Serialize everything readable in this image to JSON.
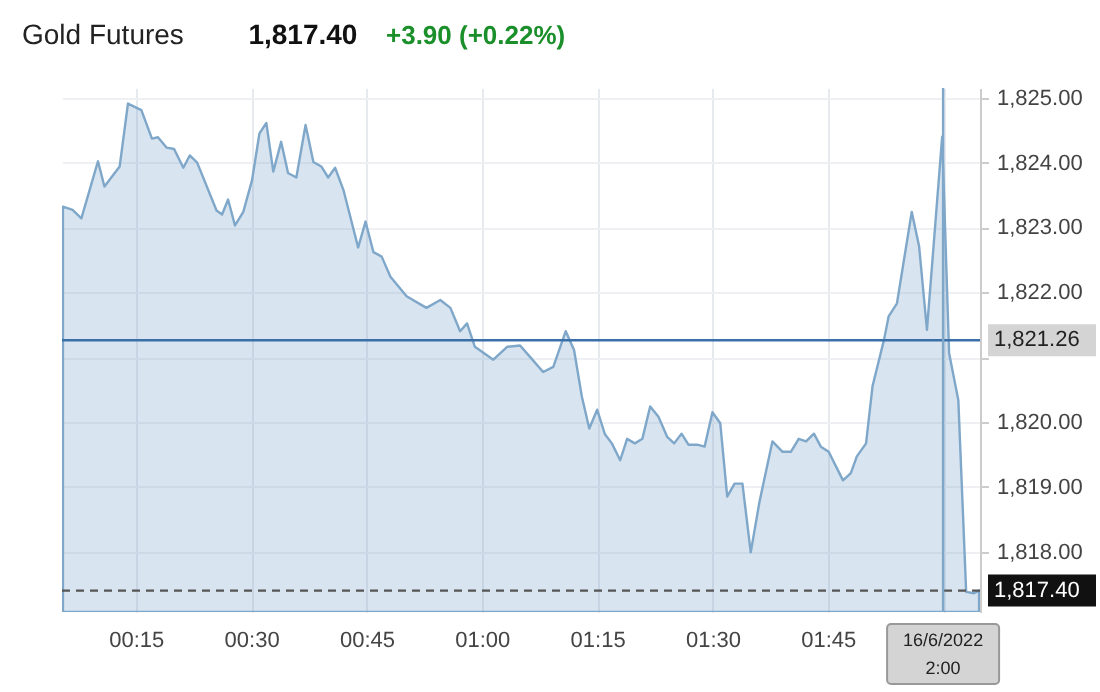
{
  "chart_data": {
    "type": "area",
    "title": "Gold Futures",
    "annotations": [
      "1,817.40",
      "+3.90 (+0.22%)"
    ],
    "x": [
      0.092,
      0.113,
      0.132,
      0.168,
      0.182,
      0.215,
      0.233,
      0.262,
      0.285,
      0.298,
      0.317,
      0.333,
      0.353,
      0.367,
      0.383,
      0.425,
      0.437,
      0.45,
      0.465,
      0.483,
      0.502,
      0.518,
      0.533,
      0.548,
      0.565,
      0.58,
      0.598,
      0.618,
      0.635,
      0.652,
      0.667,
      0.682,
      0.7,
      0.732,
      0.748,
      0.765,
      0.783,
      0.802,
      0.837,
      0.88,
      0.91,
      0.932,
      0.953,
      0.968,
      0.985,
      1.025,
      1.055,
      1.083,
      1.105,
      1.133,
      1.155,
      1.182,
      1.2,
      1.217,
      1.233,
      1.25,
      1.267,
      1.282,
      1.3,
      1.315,
      1.332,
      1.348,
      1.365,
      1.383,
      1.402,
      1.417,
      1.433,
      1.448,
      1.467,
      1.483,
      1.5,
      1.517,
      1.532,
      1.548,
      1.565,
      1.583,
      1.602,
      1.63,
      1.652,
      1.67,
      1.687,
      1.703,
      1.72,
      1.735,
      1.752,
      1.783,
      1.8,
      1.813,
      1.833,
      1.847,
      1.872,
      1.882,
      1.9,
      1.932,
      1.948,
      1.965,
      1.998,
      2.013,
      2.033,
      2.05,
      2.067,
      2.078
    ],
    "series": [
      {
        "color": "#7fa7c9",
        "values": [
          1823.32,
          1823.27,
          1823.14,
          1824.02,
          1823.63,
          1823.94,
          1824.91,
          1824.81,
          1824.37,
          1824.39,
          1824.23,
          1824.21,
          1823.92,
          1824.11,
          1824.0,
          1823.26,
          1823.2,
          1823.43,
          1823.03,
          1823.24,
          1823.73,
          1824.45,
          1824.61,
          1823.86,
          1824.32,
          1823.84,
          1823.77,
          1824.58,
          1824.01,
          1823.94,
          1823.77,
          1823.92,
          1823.58,
          1822.69,
          1823.09,
          1822.62,
          1822.55,
          1822.24,
          1821.94,
          1821.76,
          1821.88,
          1821.76,
          1821.4,
          1821.52,
          1821.16,
          1820.96,
          1821.16,
          1821.18,
          1821.0,
          1820.77,
          1820.85,
          1821.4,
          1821.11,
          1820.39,
          1819.9,
          1820.19,
          1819.81,
          1819.67,
          1819.41,
          1819.74,
          1819.67,
          1819.74,
          1820.24,
          1820.08,
          1819.77,
          1819.67,
          1819.82,
          1819.65,
          1819.65,
          1819.62,
          1820.15,
          1819.98,
          1818.85,
          1819.05,
          1819.05,
          1817.99,
          1818.77,
          1819.7,
          1819.54,
          1819.54,
          1819.74,
          1819.7,
          1819.82,
          1819.62,
          1819.54,
          1819.1,
          1819.21,
          1819.47,
          1819.67,
          1820.55,
          1821.27,
          1821.63,
          1821.83,
          1823.24,
          1822.71,
          1821.42,
          1824.4,
          1821.06,
          1820.34,
          1817.38,
          1817.36,
          1817.4
        ]
      }
    ],
    "xlim": [
      0.09,
      2.08
    ],
    "xticks": [
      {
        "value": 0.25,
        "label": "00:15"
      },
      {
        "value": 0.5,
        "label": "00:30"
      },
      {
        "value": 0.75,
        "label": "00:45"
      },
      {
        "value": 1.0,
        "label": "01:00"
      },
      {
        "value": 1.25,
        "label": "01:15"
      },
      {
        "value": 1.5,
        "label": "01:30"
      },
      {
        "value": 1.75,
        "label": "01:45"
      },
      {
        "value": 2.0,
        "label": null
      }
    ],
    "ylim": [
      1817.07,
      1825.15
    ],
    "yticks": [
      {
        "value": 1818,
        "label": "1,818.00"
      },
      {
        "value": 1819,
        "label": "1,819.00"
      },
      {
        "value": 1820,
        "label": "1,820.00"
      },
      {
        "value": 1821,
        "label": null
      },
      {
        "value": 1822,
        "label": "1,822.00"
      },
      {
        "value": 1823,
        "label": "1,823.00"
      },
      {
        "value": 1824,
        "label": "1,824.00"
      },
      {
        "value": 1825,
        "label": "1,825.00"
      }
    ],
    "ref_lines": [
      {
        "axis": "y",
        "value": 1821.26,
        "label": "1,821.26",
        "color": "#3a6fa8",
        "line_style": "solid"
      },
      {
        "axis": "y",
        "value": 1817.4,
        "label": "1,817.40",
        "color": "#555555",
        "line_style": "dashed"
      },
      {
        "axis": "x",
        "value": 2.0,
        "label": "16/6/2022 2:00",
        "color": "#7fa7c9",
        "line_style": "solid"
      }
    ],
    "grid": true
  }
}
